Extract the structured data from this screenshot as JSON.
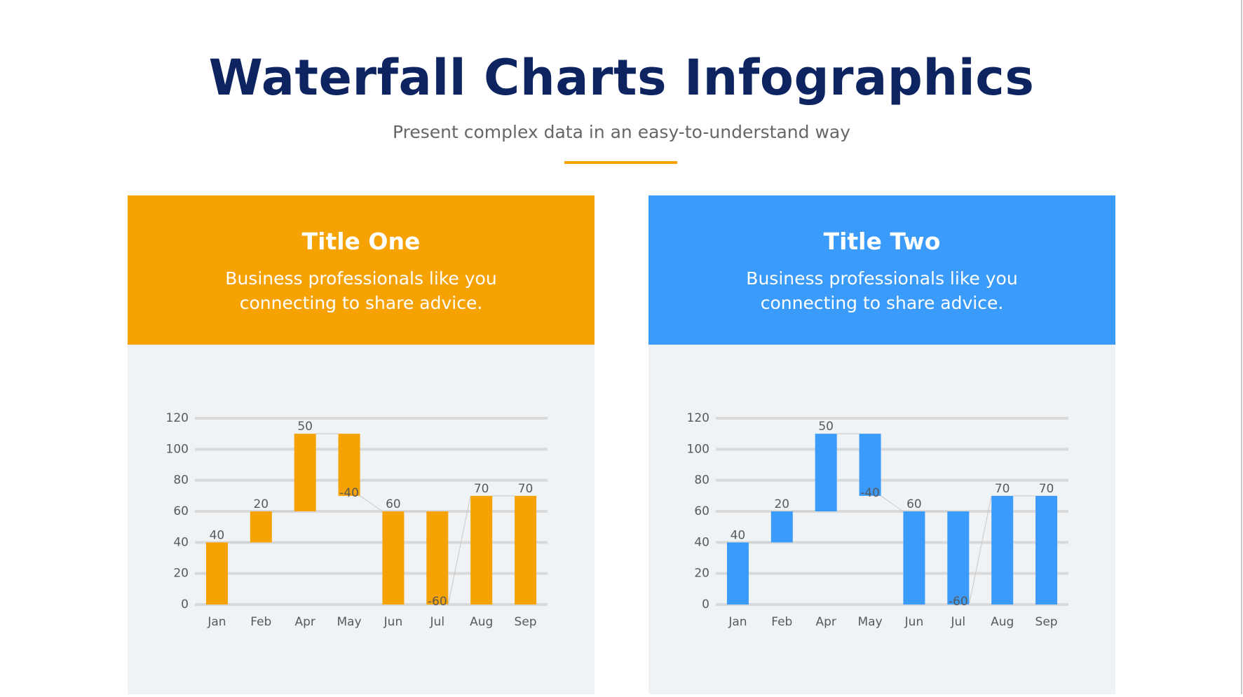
{
  "header": {
    "title": "Waterfall Charts Infographics",
    "subtitle": "Present complex data in an easy-to-understand way"
  },
  "chart_data": [
    {
      "type": "waterfall",
      "title": "Title One",
      "subtitle": "Business professionals like you connecting to share advice.",
      "color": "#f5a202",
      "categories": [
        "Jan",
        "Feb",
        "Apr",
        "May",
        "Jun",
        "Jul",
        "Aug",
        "Sep"
      ],
      "values": [
        40,
        20,
        50,
        -40,
        60,
        -60,
        70,
        70
      ],
      "measure": [
        "relative",
        "relative",
        "relative",
        "relative",
        "absolute",
        "relative",
        "absolute",
        "absolute"
      ],
      "ylim": [
        0,
        120
      ],
      "yticks": [
        0,
        20,
        40,
        60,
        80,
        100,
        120
      ],
      "grid": true
    },
    {
      "type": "waterfall",
      "title": "Title Two",
      "subtitle": "Business professionals like you connecting to share advice.",
      "color": "#3b9bfa",
      "categories": [
        "Jan",
        "Feb",
        "Apr",
        "May",
        "Jun",
        "Jul",
        "Aug",
        "Sep"
      ],
      "values": [
        40,
        20,
        50,
        -40,
        60,
        -60,
        70,
        70
      ],
      "measure": [
        "relative",
        "relative",
        "relative",
        "relative",
        "absolute",
        "relative",
        "absolute",
        "absolute"
      ],
      "ylim": [
        0,
        120
      ],
      "yticks": [
        0,
        20,
        40,
        60,
        80,
        100,
        120
      ],
      "grid": true
    }
  ]
}
